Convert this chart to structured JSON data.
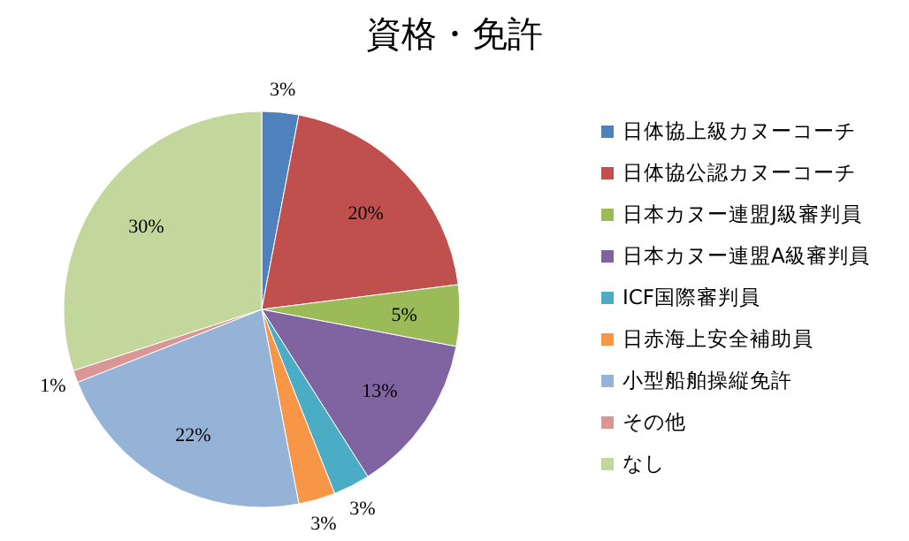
{
  "chart_data": {
    "type": "pie",
    "title": "資格・免許",
    "categories": [
      "日体協上級カヌーコーチ",
      "日体協公認カヌーコーチ",
      "日本カヌー連盟J級審判員",
      "日本カヌー連盟A級審判員",
      "ICF国際審判員",
      "日赤海上安全補助員",
      "小型船舶操縦免許",
      "その他",
      "なし"
    ],
    "values": [
      3,
      20,
      5,
      13,
      3,
      3,
      22,
      1,
      30
    ],
    "colors": [
      "#4f81bd",
      "#c0504d",
      "#9bbb59",
      "#8064a2",
      "#4bacc6",
      "#f79646",
      "#95b3d7",
      "#d99694",
      "#c3d69b"
    ],
    "value_labels": [
      "3%",
      "20%",
      "5%",
      "13%",
      "3%",
      "3%",
      "22%",
      "1%",
      "30%"
    ],
    "legend": "right"
  }
}
